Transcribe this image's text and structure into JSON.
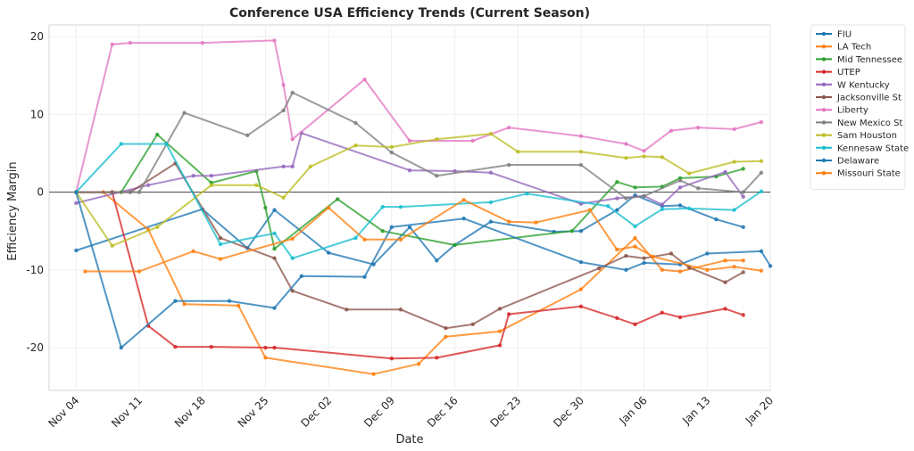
{
  "chart_data": {
    "type": "line",
    "title": "Conference USA Efficiency Trends (Current Season)",
    "xlabel": "Date",
    "ylabel": "Efficiency Margin",
    "x_range": [
      "2024-11-01",
      "2025-01-20"
    ],
    "ylim": [
      -25.5,
      21.5
    ],
    "x_ticks": [
      {
        "date": "2024-11-04",
        "label": "Nov 04"
      },
      {
        "date": "2024-11-11",
        "label": "Nov 11"
      },
      {
        "date": "2024-11-18",
        "label": "Nov 18"
      },
      {
        "date": "2024-11-25",
        "label": "Nov 25"
      },
      {
        "date": "2024-12-02",
        "label": "Dec 02"
      },
      {
        "date": "2024-12-09",
        "label": "Dec 09"
      },
      {
        "date": "2024-12-16",
        "label": "Dec 16"
      },
      {
        "date": "2024-12-23",
        "label": "Dec 23"
      },
      {
        "date": "2024-12-30",
        "label": "Dec 30"
      },
      {
        "date": "2025-01-06",
        "label": "Jan 06"
      },
      {
        "date": "2025-01-13",
        "label": "Jan 13"
      },
      {
        "date": "2025-01-20",
        "label": "Jan 20"
      }
    ],
    "y_ticks": [
      -20,
      -10,
      0,
      10,
      20
    ],
    "grid": true,
    "zero_line": true,
    "legend_position": "outside-right",
    "series": [
      {
        "name": "FIU",
        "color": "#1f77b4",
        "points": [
          [
            "2024-11-04",
            -7.5
          ],
          [
            "2024-11-18",
            -2.2
          ],
          [
            "2024-11-23",
            -7.2
          ],
          [
            "2024-11-26",
            -2.3
          ],
          [
            "2024-12-02",
            -7.8
          ],
          [
            "2024-12-07",
            -9.3
          ],
          [
            "2024-12-11",
            -4.5
          ],
          [
            "2024-12-14",
            -8.8
          ],
          [
            "2024-12-16",
            -6.8
          ],
          [
            "2024-12-20",
            -3.8
          ],
          [
            "2024-12-27",
            -5.1
          ],
          [
            "2024-12-30",
            -5.0
          ],
          [
            "2025-01-03",
            -2.3
          ],
          [
            "2025-01-05",
            -0.4
          ],
          [
            "2025-01-08",
            -1.8
          ],
          [
            "2025-01-10",
            -1.7
          ],
          [
            "2025-01-14",
            -3.5
          ],
          [
            "2025-01-17",
            -4.5
          ]
        ]
      },
      {
        "name": "LA Tech",
        "color": "#ff7f0e",
        "points": [
          [
            "2024-11-04",
            0.0
          ],
          [
            "2024-11-07",
            0.0
          ],
          [
            "2024-11-12",
            -4.8
          ],
          [
            "2024-11-16",
            -14.4
          ],
          [
            "2024-11-22",
            -14.6
          ],
          [
            "2024-11-25",
            -21.3
          ],
          [
            "2024-12-07",
            -23.4
          ],
          [
            "2024-12-12",
            -22.1
          ],
          [
            "2024-12-15",
            -18.6
          ],
          [
            "2024-12-21",
            -17.9
          ],
          [
            "2024-12-30",
            -12.5
          ],
          [
            "2025-01-05",
            -5.9
          ],
          [
            "2025-01-08",
            -10.0
          ],
          [
            "2025-01-10",
            -10.2
          ],
          [
            "2025-01-15",
            -8.8
          ],
          [
            "2025-01-17",
            -8.8
          ]
        ]
      },
      {
        "name": "Mid Tennessee",
        "color": "#2ca02c",
        "points": [
          [
            "2024-11-04",
            0.0
          ],
          [
            "2024-11-09",
            0.0
          ],
          [
            "2024-11-13",
            7.4
          ],
          [
            "2024-11-19",
            1.2
          ],
          [
            "2024-11-24",
            2.7
          ],
          [
            "2024-11-25",
            -2.0
          ],
          [
            "2024-11-26",
            -7.3
          ],
          [
            "2024-12-03",
            -0.9
          ],
          [
            "2024-12-08",
            -5.0
          ],
          [
            "2024-12-16",
            -6.8
          ],
          [
            "2024-12-29",
            -5.0
          ],
          [
            "2025-01-03",
            1.3
          ],
          [
            "2025-01-05",
            0.6
          ],
          [
            "2025-01-08",
            0.7
          ],
          [
            "2025-01-10",
            1.8
          ],
          [
            "2025-01-14",
            2.0
          ],
          [
            "2025-01-17",
            3.0
          ]
        ]
      },
      {
        "name": "UTEP",
        "color": "#d62728",
        "points": [
          [
            "2024-11-04",
            0.0
          ],
          [
            "2024-11-08",
            0.0
          ],
          [
            "2024-11-12",
            -17.2
          ],
          [
            "2024-11-15",
            -19.9
          ],
          [
            "2024-11-19",
            -19.9
          ],
          [
            "2024-11-25",
            -20.0
          ],
          [
            "2024-11-26",
            -20.0
          ],
          [
            "2024-12-09",
            -21.4
          ],
          [
            "2024-12-14",
            -21.3
          ],
          [
            "2024-12-21",
            -19.7
          ],
          [
            "2024-12-22",
            -15.7
          ],
          [
            "2024-12-30",
            -14.7
          ],
          [
            "2025-01-03",
            -16.2
          ],
          [
            "2025-01-05",
            -17.0
          ],
          [
            "2025-01-08",
            -15.5
          ],
          [
            "2025-01-10",
            -16.1
          ],
          [
            "2025-01-15",
            -15.0
          ],
          [
            "2025-01-17",
            -15.8
          ]
        ]
      },
      {
        "name": "W Kentucky",
        "color": "#9467bd",
        "points": [
          [
            "2024-11-04",
            -1.4
          ],
          [
            "2024-11-12",
            0.9
          ],
          [
            "2024-11-17",
            2.1
          ],
          [
            "2024-11-19",
            2.1
          ],
          [
            "2024-11-27",
            3.3
          ],
          [
            "2024-11-28",
            3.3
          ],
          [
            "2024-11-29",
            7.6
          ],
          [
            "2024-12-11",
            2.8
          ],
          [
            "2024-12-16",
            2.7
          ],
          [
            "2024-12-20",
            2.5
          ],
          [
            "2024-12-30",
            -1.5
          ],
          [
            "2025-01-03",
            -0.8
          ],
          [
            "2025-01-06",
            -0.5
          ],
          [
            "2025-01-08",
            -1.6
          ],
          [
            "2025-01-10",
            0.6
          ],
          [
            "2025-01-15",
            2.6
          ],
          [
            "2025-01-17",
            -0.6
          ]
        ]
      },
      {
        "name": "Jacksonville St",
        "color": "#8c564b",
        "points": [
          [
            "2024-11-04",
            0.0
          ],
          [
            "2024-11-08",
            0.0
          ],
          [
            "2024-11-10",
            0.0
          ],
          [
            "2024-11-15",
            3.7
          ],
          [
            "2024-11-20",
            -5.9
          ],
          [
            "2024-11-26",
            -8.5
          ],
          [
            "2024-11-28",
            -12.7
          ],
          [
            "2024-12-04",
            -15.1
          ],
          [
            "2024-12-10",
            -15.1
          ],
          [
            "2024-12-15",
            -17.5
          ],
          [
            "2024-12-18",
            -17.0
          ],
          [
            "2024-12-21",
            -15.0
          ],
          [
            "2025-01-01",
            -9.8
          ],
          [
            "2025-01-04",
            -8.2
          ],
          [
            "2025-01-06",
            -8.5
          ],
          [
            "2025-01-09",
            -7.9
          ],
          [
            "2025-01-11",
            -9.7
          ],
          [
            "2025-01-15",
            -11.6
          ],
          [
            "2025-01-17",
            -10.3
          ]
        ]
      },
      {
        "name": "Liberty",
        "color": "#e377c2",
        "points": [
          [
            "2024-11-04",
            0.0
          ],
          [
            "2024-11-08",
            19.0
          ],
          [
            "2024-11-10",
            19.2
          ],
          [
            "2024-11-18",
            19.2
          ],
          [
            "2024-11-26",
            19.5
          ],
          [
            "2024-11-27",
            13.8
          ],
          [
            "2024-11-28",
            6.8
          ],
          [
            "2024-12-06",
            14.5
          ],
          [
            "2024-12-11",
            6.6
          ],
          [
            "2024-12-18",
            6.6
          ],
          [
            "2024-12-22",
            8.3
          ],
          [
            "2024-12-30",
            7.2
          ],
          [
            "2025-01-04",
            6.2
          ],
          [
            "2025-01-06",
            5.3
          ],
          [
            "2025-01-09",
            7.9
          ],
          [
            "2025-01-12",
            8.3
          ],
          [
            "2025-01-16",
            8.1
          ],
          [
            "2025-01-19",
            9.0
          ]
        ]
      },
      {
        "name": "New Mexico St",
        "color": "#7f7f7f",
        "points": [
          [
            "2024-11-04",
            0.0
          ],
          [
            "2024-11-10",
            0.0
          ],
          [
            "2024-11-11",
            0.0
          ],
          [
            "2024-11-16",
            10.2
          ],
          [
            "2024-11-23",
            7.3
          ],
          [
            "2024-11-27",
            10.5
          ],
          [
            "2024-11-28",
            12.8
          ],
          [
            "2024-12-05",
            8.9
          ],
          [
            "2024-12-09",
            5.1
          ],
          [
            "2024-12-14",
            2.1
          ],
          [
            "2024-12-22",
            3.5
          ],
          [
            "2024-12-30",
            3.5
          ],
          [
            "2025-01-04",
            -0.8
          ],
          [
            "2025-01-06",
            -0.5
          ],
          [
            "2025-01-10",
            1.5
          ],
          [
            "2025-01-12",
            0.5
          ],
          [
            "2025-01-17",
            0.0
          ],
          [
            "2025-01-19",
            2.5
          ]
        ]
      },
      {
        "name": "Sam Houston",
        "color": "#bcbd22",
        "points": [
          [
            "2024-11-04",
            0.0
          ],
          [
            "2024-11-08",
            -6.9
          ],
          [
            "2024-11-13",
            -4.5
          ],
          [
            "2024-11-19",
            0.9
          ],
          [
            "2024-11-24",
            0.9
          ],
          [
            "2024-11-27",
            -0.7
          ],
          [
            "2024-11-30",
            3.3
          ],
          [
            "2024-12-05",
            6.0
          ],
          [
            "2024-12-09",
            5.8
          ],
          [
            "2024-12-14",
            6.8
          ],
          [
            "2024-12-20",
            7.5
          ],
          [
            "2024-12-23",
            5.2
          ],
          [
            "2024-12-30",
            5.2
          ],
          [
            "2025-01-04",
            4.4
          ],
          [
            "2025-01-06",
            4.6
          ],
          [
            "2025-01-08",
            4.5
          ],
          [
            "2025-01-11",
            2.4
          ],
          [
            "2025-01-16",
            3.9
          ],
          [
            "2025-01-19",
            4.0
          ]
        ]
      },
      {
        "name": "Kennesaw State",
        "color": "#17becf",
        "points": [
          [
            "2024-11-04",
            0.0
          ],
          [
            "2024-11-09",
            6.2
          ],
          [
            "2024-11-14",
            6.2
          ],
          [
            "2024-11-20",
            -6.7
          ],
          [
            "2024-11-26",
            -5.3
          ],
          [
            "2024-11-28",
            -8.5
          ],
          [
            "2024-12-05",
            -5.9
          ],
          [
            "2024-12-08",
            -1.9
          ],
          [
            "2024-12-10",
            -1.9
          ],
          [
            "2024-12-20",
            -1.3
          ],
          [
            "2024-12-24",
            -0.2
          ],
          [
            "2025-01-02",
            -1.8
          ],
          [
            "2025-01-05",
            -4.4
          ],
          [
            "2025-01-08",
            -2.2
          ],
          [
            "2025-01-11",
            -2.1
          ],
          [
            "2025-01-16",
            -2.3
          ],
          [
            "2025-01-19",
            0.1
          ]
        ]
      },
      {
        "name": "Delaware",
        "color": "#1f77b4",
        "points": [
          [
            "2024-11-04",
            0.0
          ],
          [
            "2024-11-09",
            -20.0
          ],
          [
            "2024-11-15",
            -14.0
          ],
          [
            "2024-11-21",
            -14.0
          ],
          [
            "2024-11-26",
            -14.9
          ],
          [
            "2024-11-29",
            -10.8
          ],
          [
            "2024-12-06",
            -10.9
          ],
          [
            "2024-12-09",
            -4.5
          ],
          [
            "2024-12-17",
            -3.4
          ],
          [
            "2024-12-30",
            -9.0
          ],
          [
            "2025-01-04",
            -10.0
          ],
          [
            "2025-01-06",
            -9.1
          ],
          [
            "2025-01-10",
            -9.3
          ],
          [
            "2025-01-13",
            -7.9
          ],
          [
            "2025-01-19",
            -7.6
          ],
          [
            "2025-01-20",
            -9.5
          ]
        ]
      },
      {
        "name": "Missouri State",
        "color": "#ff7f0e",
        "points": [
          [
            "2024-11-05",
            -10.2
          ],
          [
            "2024-11-11",
            -10.2
          ],
          [
            "2024-11-17",
            -7.6
          ],
          [
            "2024-11-20",
            -8.6
          ],
          [
            "2024-11-28",
            -6.0
          ],
          [
            "2024-12-02",
            -2.0
          ],
          [
            "2024-12-06",
            -6.1
          ],
          [
            "2024-12-10",
            -6.1
          ],
          [
            "2024-12-17",
            -1.0
          ],
          [
            "2024-12-22",
            -3.8
          ],
          [
            "2024-12-25",
            -3.9
          ],
          [
            "2024-12-31",
            -2.3
          ],
          [
            "2025-01-03",
            -7.4
          ],
          [
            "2025-01-05",
            -7.0
          ],
          [
            "2025-01-07",
            -8.3
          ],
          [
            "2025-01-13",
            -10.0
          ],
          [
            "2025-01-16",
            -9.6
          ],
          [
            "2025-01-19",
            -10.1
          ]
        ]
      }
    ]
  }
}
